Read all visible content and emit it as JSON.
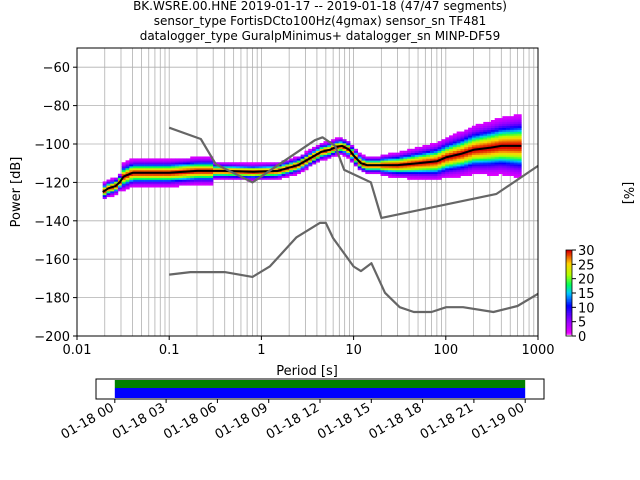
{
  "title": {
    "line1": "BK.WSRE.00.HNE   2019-01-17 -- 2019-01-18  (47/47 segments)",
    "line2": "sensor_type FortisDCto100Hz(4gmax) sensor_sn TF481",
    "line3": "datalogger_type GuralpMinimus+ datalogger_sn MINP-DF59"
  },
  "chart_data": [
    {
      "type": "heatmap",
      "subtype": "probabilistic-power-spectral-density",
      "xlabel": "Period [s]",
      "ylabel": "Power [dB]",
      "x_scale": "log",
      "xlim": [
        0.01,
        1000
      ],
      "ylim": [
        -200,
        -50
      ],
      "x_ticks": [
        "0.01",
        "0.1",
        "1",
        "10",
        "100",
        "1000"
      ],
      "y_ticks": [
        -60,
        -80,
        -100,
        -120,
        -140,
        -160,
        -180,
        -200
      ],
      "grid": true,
      "colorbar": {
        "label": "[%]",
        "ticks": [
          0,
          5,
          10,
          15,
          20,
          25,
          30
        ],
        "range": [
          0,
          30
        ],
        "colormap": "pqlx"
      },
      "series": [
        {
          "name": "",
          "kind": "mode",
          "color": "#000000",
          "x": [
            0.019,
            0.022,
            0.026,
            0.029,
            0.032,
            0.04,
            0.06,
            0.1,
            0.2,
            0.4,
            0.8,
            1.5,
            2.5,
            3.5,
            4.5,
            5.5,
            6.5,
            7.5,
            9,
            10,
            11,
            12,
            14,
            20,
            30,
            50,
            80,
            100,
            150,
            200,
            300,
            400,
            550,
            660
          ],
          "y": [
            -125,
            -123,
            -122,
            -120,
            -117,
            -115,
            -115,
            -115,
            -114,
            -114,
            -114.5,
            -114,
            -111,
            -107,
            -104,
            -103,
            -101.5,
            -101,
            -103,
            -106,
            -108,
            -110,
            -111,
            -111,
            -111,
            -110,
            -109,
            -107,
            -105,
            -103,
            -102,
            -101,
            -101,
            -101
          ]
        },
        {
          "name": "",
          "kind": "noise-model-high",
          "color": "#666666",
          "x": [
            0.1,
            0.22,
            0.32,
            0.8,
            3.8,
            4.6,
            6.3,
            7.9,
            15.4,
            20,
            354.8,
            1000
          ],
          "y": [
            -91.5,
            -97.4,
            -110.5,
            -120,
            -98,
            -96.5,
            -101,
            -113.5,
            -120,
            -138.5,
            -126,
            -111.4
          ]
        },
        {
          "name": "",
          "kind": "noise-model-low",
          "color": "#666666",
          "x": [
            0.1,
            0.17,
            0.4,
            0.8,
            1.24,
            2.4,
            4.3,
            5.0,
            6.0,
            10,
            12,
            15.6,
            21.9,
            31.6,
            45,
            70,
            101,
            154,
            328,
            600,
            1000
          ],
          "y": [
            -168,
            -166.7,
            -166.7,
            -169.2,
            -163.7,
            -148.6,
            -141.1,
            -141.1,
            -149,
            -163.8,
            -166.2,
            -162.1,
            -177.5,
            -185,
            -187.5,
            -187.5,
            -185,
            -185,
            -187.5,
            -184.4,
            -178
          ]
        }
      ]
    },
    {
      "type": "timeline",
      "description_role": "data-availability",
      "x_ticks": [
        "01-18 00",
        "01-18 03",
        "01-18 06",
        "01-18 09",
        "01-18 12",
        "01-18 15",
        "01-18 18",
        "01-18 21",
        "01-19 00"
      ],
      "xlim_hours": [
        -1.1,
        25.1
      ],
      "coverage_hours": [
        0,
        24
      ],
      "colors": {
        "data": "#008000",
        "used": "#0000ff"
      }
    }
  ]
}
